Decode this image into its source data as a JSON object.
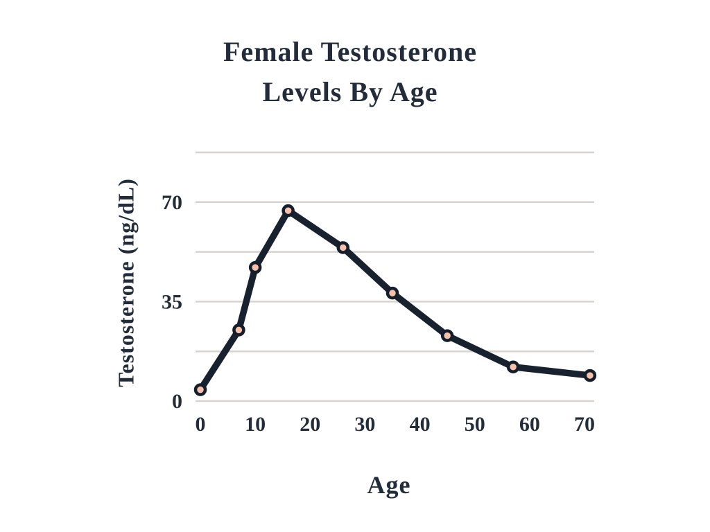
{
  "chart_data": {
    "type": "line",
    "title": "Female Testosterone Levels By Age",
    "title_lines": [
      "Female Testosterone",
      "Levels By Age"
    ],
    "xlabel": "Age",
    "ylabel": "Testosterone (ng/dL)",
    "x": [
      0,
      7,
      10,
      16,
      26,
      35,
      45,
      57,
      71
    ],
    "values": [
      4,
      25,
      47,
      67,
      54,
      38,
      23,
      12,
      9
    ],
    "x_ticks": [
      "0",
      "10",
      "20",
      "30",
      "40",
      "50",
      "60",
      "70"
    ],
    "y_ticks": [
      "0",
      "35",
      "70"
    ],
    "y_tick_values": [
      0,
      35,
      70
    ],
    "gridline_values": [
      0,
      17.5,
      35,
      52.5,
      70,
      87.5
    ],
    "xlim": [
      0,
      70
    ],
    "ylim": [
      0,
      87.5
    ],
    "grid": "horizontal-only",
    "legend": "none",
    "colors": {
      "background": "#ffffff",
      "ink": "#222c3a",
      "line": "#18222f",
      "marker_fill": "#f7c0ab",
      "marker_stroke": "#151e2b",
      "gridline": "#d8d2ce"
    }
  }
}
